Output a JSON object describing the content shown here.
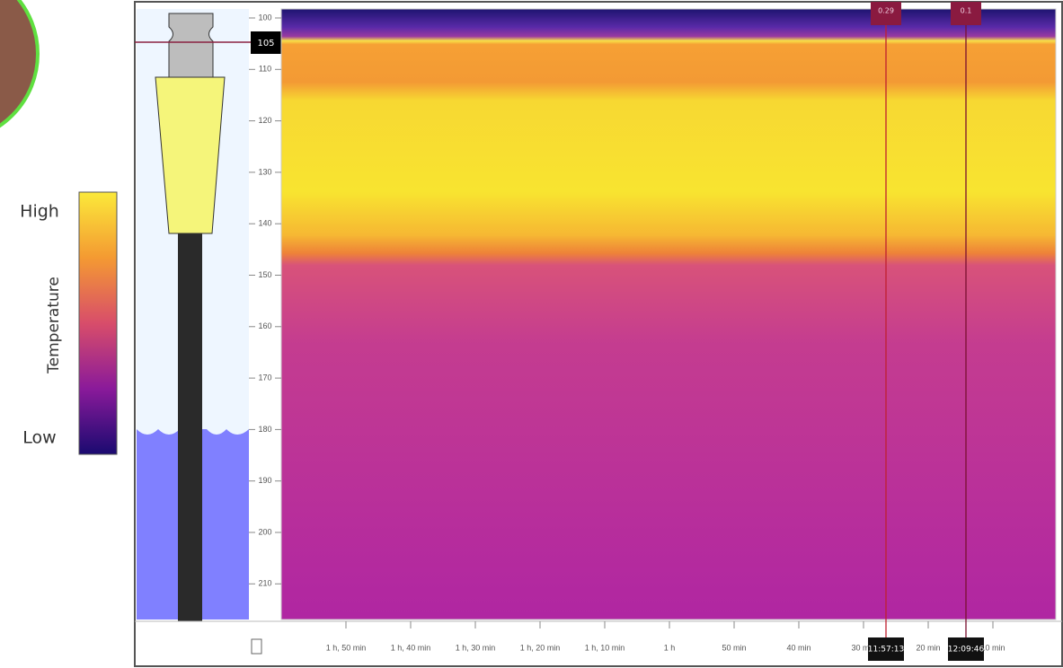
{
  "legend": {
    "high": "High",
    "title": "Temperature",
    "low": "Low"
  },
  "depth_marker": "105",
  "y_axis": {
    "ticks": [
      "100",
      "110",
      "120",
      "130",
      "140",
      "150",
      "160",
      "170",
      "180",
      "190",
      "200",
      "210"
    ]
  },
  "x_axis": {
    "ticks": [
      "1 h, 50 min",
      "1 h, 40 min",
      "1 h, 30 min",
      "1 h, 20 min",
      "1 h, 10 min",
      "1 h",
      "50 min",
      "40 min",
      "30 min",
      "20 min",
      "10 min"
    ]
  },
  "cursors": [
    {
      "tag": "0.29",
      "time": "11:57:13"
    },
    {
      "tag": "0.1",
      "time": "12:09:46"
    }
  ]
}
